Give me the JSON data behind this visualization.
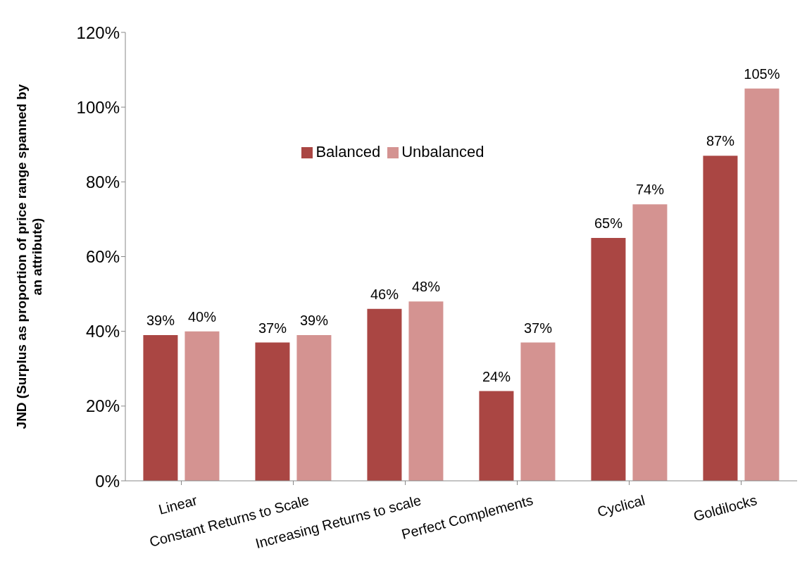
{
  "chart_data": {
    "type": "bar",
    "ylabel": "JND (Surplus as proportion of price range spanned by an attribute)",
    "categories": [
      "Linear",
      "Constant Returns to Scale",
      "Increasing Returns to scale",
      "Perfect Complements",
      "Cyclical",
      "Goldilocks"
    ],
    "series": [
      {
        "name": "Balanced",
        "color": "#aa4643",
        "values": [
          39,
          37,
          46,
          24,
          65,
          87
        ],
        "value_labels": [
          "39%",
          "37%",
          "46%",
          "24%",
          "65%",
          "87%"
        ]
      },
      {
        "name": "Unbalanced",
        "color": "#d49391",
        "values": [
          40,
          39,
          48,
          37,
          74,
          105
        ],
        "value_labels": [
          "40%",
          "39%",
          "48%",
          "37%",
          "74%",
          "105%"
        ]
      }
    ],
    "ylim": [
      0,
      120
    ],
    "yticks": [
      {
        "value": 0,
        "label": "0%"
      },
      {
        "value": 20,
        "label": "20%"
      },
      {
        "value": 40,
        "label": "40%"
      },
      {
        "value": 60,
        "label": "60%"
      },
      {
        "value": 80,
        "label": "80%"
      },
      {
        "value": 100,
        "label": "100%"
      },
      {
        "value": 120,
        "label": "120%"
      }
    ],
    "grid": false,
    "legend": "top"
  }
}
